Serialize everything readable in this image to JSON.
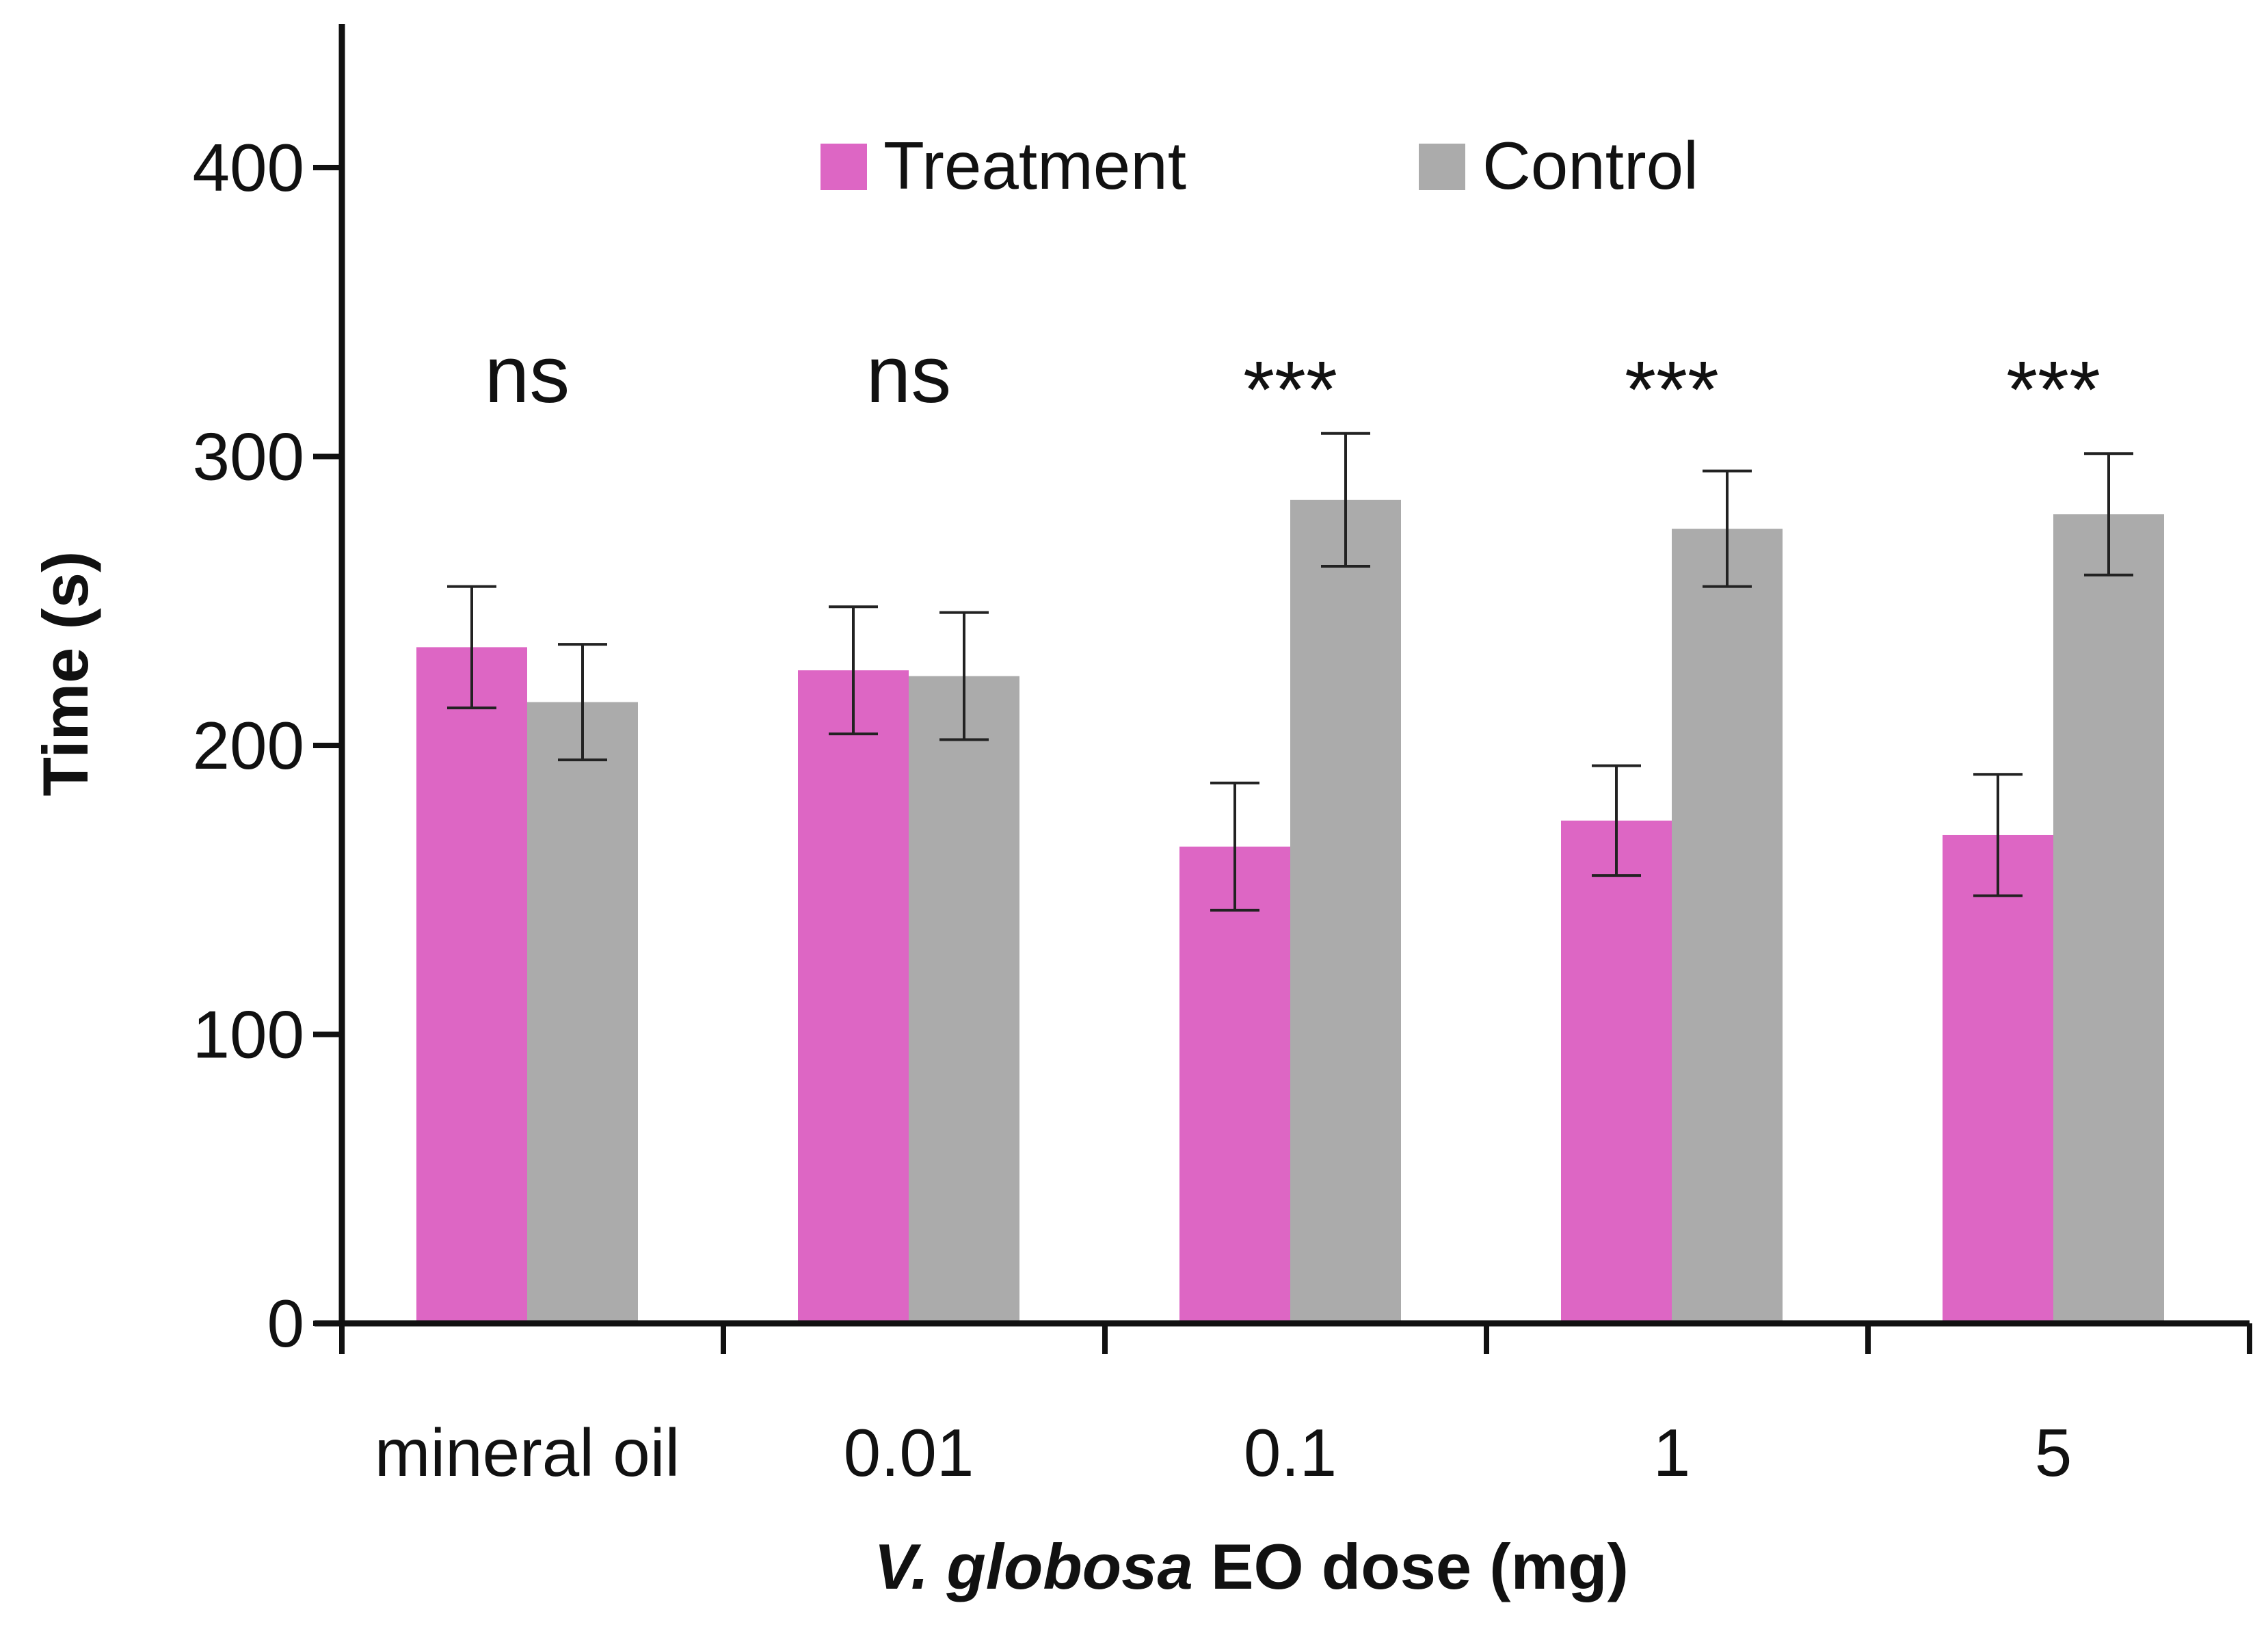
{
  "chart_data": {
    "type": "bar",
    "title": "",
    "xlabel": "V. globosa EO dose (mg)",
    "xlabel_italic_part": "V. globosa",
    "xlabel_rest": " EO dose (mg)",
    "ylabel": "Time (s)",
    "ylim": [
      0,
      450
    ],
    "yticks": [
      0,
      100,
      200,
      300,
      400
    ],
    "grid": false,
    "legend_position": "top-center",
    "categories": [
      "mineral oil",
      "0.01",
      "0.1",
      "1",
      "5"
    ],
    "series": [
      {
        "name": "Treatment",
        "color": "#DD66C4",
        "values": [
          234,
          226,
          165,
          174,
          169
        ],
        "errors": [
          21,
          22,
          22,
          19,
          21
        ]
      },
      {
        "name": "Control",
        "color": "#ABABAB",
        "values": [
          215,
          224,
          285,
          275,
          280
        ],
        "errors": [
          20,
          22,
          23,
          20,
          21
        ]
      }
    ],
    "annotations": [
      "ns",
      "ns",
      "***",
      "***",
      "***"
    ]
  }
}
